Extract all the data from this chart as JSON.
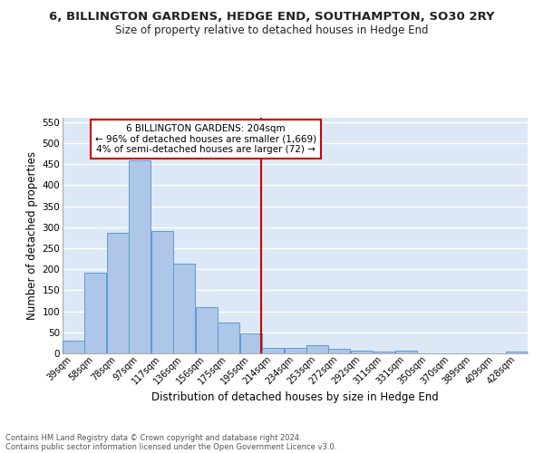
{
  "title": "6, BILLINGTON GARDENS, HEDGE END, SOUTHAMPTON, SO30 2RY",
  "subtitle": "Size of property relative to detached houses in Hedge End",
  "xlabel": "Distribution of detached houses by size in Hedge End",
  "ylabel": "Number of detached properties",
  "categories": [
    "39sqm",
    "58sqm",
    "78sqm",
    "97sqm",
    "117sqm",
    "136sqm",
    "156sqm",
    "175sqm",
    "195sqm",
    "214sqm",
    "234sqm",
    "253sqm",
    "272sqm",
    "292sqm",
    "311sqm",
    "331sqm",
    "350sqm",
    "370sqm",
    "389sqm",
    "409sqm",
    "428sqm"
  ],
  "values": [
    30,
    191,
    287,
    459,
    290,
    213,
    110,
    73,
    47,
    14,
    13,
    20,
    10,
    7,
    5,
    6,
    0,
    0,
    0,
    0,
    5
  ],
  "bar_color": "#aec6e8",
  "bar_edge_color": "#5b9bd5",
  "bg_color": "#dce8f5",
  "grid_color": "#ffffff",
  "property_line_color": "#cc0000",
  "annotation_text": "6 BILLINGTON GARDENS: 204sqm\n← 96% of detached houses are smaller (1,669)\n4% of semi-detached houses are larger (72) →",
  "annotation_box_color": "#cc0000",
  "ylim": [
    0,
    560
  ],
  "yticks": [
    0,
    50,
    100,
    150,
    200,
    250,
    300,
    350,
    400,
    450,
    500,
    550
  ],
  "footnote1": "Contains HM Land Registry data © Crown copyright and database right 2024.",
  "footnote2": "Contains public sector information licensed under the Open Government Licence v3.0.",
  "centers": [
    39,
    58,
    78,
    97,
    117,
    136,
    156,
    175,
    195,
    214,
    234,
    253,
    272,
    292,
    311,
    331,
    350,
    370,
    389,
    409,
    428
  ],
  "bin_width": 19,
  "property_line_x": 204
}
